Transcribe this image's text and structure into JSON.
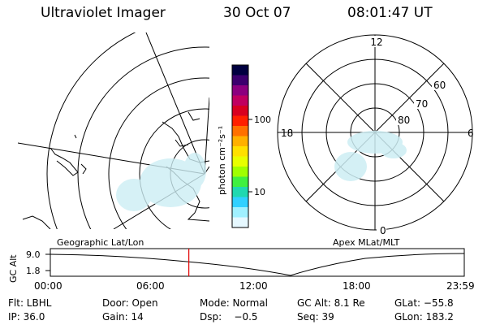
{
  "header": {
    "instrument": "Ultraviolet Imager",
    "date": "30 Oct 07",
    "time": "08:01:47 UT"
  },
  "colorbar": {
    "label": "photon cm⁻²s⁻¹",
    "ticks": [
      "100",
      "10"
    ],
    "colors": [
      "#000040",
      "#3c006e",
      "#8c007f",
      "#c00060",
      "#d80020",
      "#ff2000",
      "#ff7000",
      "#ffb000",
      "#ffe000",
      "#e8ff00",
      "#a0ff00",
      "#40f040",
      "#20d8b0",
      "#30d0ff",
      "#a0f0ff",
      "#e6f8ff"
    ]
  },
  "polar": {
    "mlt_labels": {
      "top": "12",
      "left": "18",
      "right": "6",
      "bottom": "0"
    },
    "lat_labels": [
      "60",
      "70",
      "80"
    ]
  },
  "map_labels": {
    "geographic": "Geographic Lat/Lon",
    "apex": "Apex MLat/MLT"
  },
  "timeline": {
    "axis_label": "GC Alt",
    "y_ticks": [
      "9.0",
      "1.8"
    ],
    "x_ticks": [
      "00:00",
      "06:00",
      "12:00",
      "18:00",
      "23:59"
    ],
    "marker_fraction": 0.3346
  },
  "status": {
    "filter": "Flt: LBHL",
    "door": "Door: Open",
    "mode": "Mode: Normal",
    "gc_alt": "GC Alt: 8.1 Re",
    "glat": "GLat: −55.8",
    "ip": "IP: 36.0",
    "gain": "Gain: 14",
    "dsp": "Dsp:    −0.5",
    "seq": "Seq: 39",
    "glon": "GLon: 183.2"
  }
}
